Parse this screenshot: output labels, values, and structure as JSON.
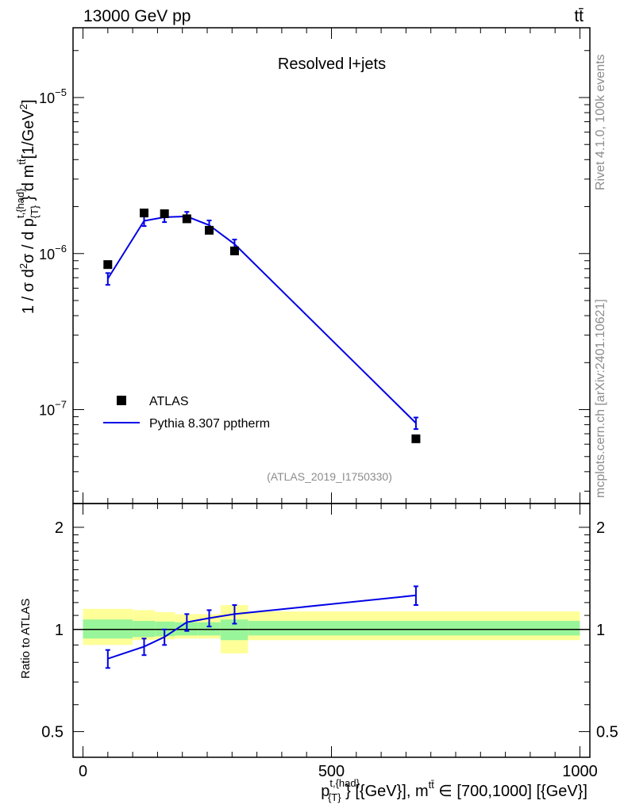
{
  "header": {
    "left_label": "13000 GeV pp",
    "right_label": "tt̄"
  },
  "side_labels": {
    "rivet": "Rivet 4.1.0,  100k events",
    "mcplots": "mcplots.cern.ch [arXiv:2401.10621]"
  },
  "chart_data": [
    {
      "panel": "main",
      "type": "scatter",
      "title": "Resolved l+jets",
      "analysis_label": "(ATLAS_2019_I1750330)",
      "ylabel": "1 / σ d²σ / d p^{t,{had}}_{T} d m^{tt̄} [1/GeV²]",
      "yscale": "log",
      "ylim": [
        2.5e-08,
        2.8e-05
      ],
      "xlim": [
        -20,
        1020
      ],
      "y_ticks": [
        {
          "value": 1e-07,
          "base": "10",
          "exp": "−7"
        },
        {
          "value": 1e-06,
          "base": "10",
          "exp": "−6"
        },
        {
          "value": 1e-05,
          "base": "10",
          "exp": "−5"
        }
      ],
      "legend": [
        {
          "label": "ATLAS",
          "marker": "square",
          "color": "#000000"
        },
        {
          "label": "Pythia 8.307 pptherm",
          "marker": "line",
          "color": "#0000e6"
        }
      ],
      "series": [
        {
          "name": "ATLAS",
          "marker": "square",
          "color": "#000000",
          "x": [
            50,
            123,
            164,
            209,
            254,
            305,
            670
          ],
          "y": [
            8.5e-07,
            1.82e-06,
            1.8e-06,
            1.67e-06,
            1.41e-06,
            1.04e-06,
            6.5e-08
          ]
        },
        {
          "name": "Pythia 8.307 pptherm",
          "marker": "line",
          "color": "#0000e6",
          "x": [
            50,
            123,
            164,
            209,
            254,
            305,
            670
          ],
          "y": [
            6.9e-07,
            1.62e-06,
            1.71e-06,
            1.73e-06,
            1.52e-06,
            1.15e-06,
            8.2e-08
          ],
          "yerr": [
            6e-08,
            1.2e-07,
            1.2e-07,
            1.2e-07,
            1.1e-07,
            8e-08,
            7e-09
          ]
        }
      ]
    },
    {
      "panel": "ratio",
      "type": "line",
      "ylabel": "Ratio to ATLAS",
      "xlabel": "p^{t,{had}}_{T} [{GeV}], m^{tt̄} ∈ [700,1000] [{GeV}]",
      "yscale": "log",
      "ylim": [
        0.42,
        2.35
      ],
      "xlim": [
        -20,
        1020
      ],
      "x_ticks": [
        0,
        500,
        1000
      ],
      "y_ticks": [
        0.5,
        1,
        2
      ],
      "bands": {
        "bins": [
          [
            0,
            100
          ],
          [
            100,
            145
          ],
          [
            145,
            185
          ],
          [
            185,
            232
          ],
          [
            232,
            277
          ],
          [
            277,
            332
          ],
          [
            332,
            1000
          ]
        ],
        "yellow": [
          [
            0.9,
            1.15
          ],
          [
            0.93,
            1.14
          ],
          [
            0.935,
            1.125
          ],
          [
            0.94,
            1.11
          ],
          [
            0.94,
            1.11
          ],
          [
            0.85,
            1.18
          ],
          [
            0.93,
            1.13
          ]
        ],
        "green": [
          [
            0.94,
            1.07
          ],
          [
            0.95,
            1.06
          ],
          [
            0.955,
            1.055
          ],
          [
            0.96,
            1.05
          ],
          [
            0.96,
            1.05
          ],
          [
            0.93,
            1.07
          ],
          [
            0.96,
            1.06
          ]
        ]
      },
      "series": [
        {
          "name": "Pythia 8.307 pptherm / ATLAS",
          "color": "#0000e6",
          "x": [
            50,
            123,
            164,
            209,
            254,
            305,
            670
          ],
          "y": [
            0.82,
            0.89,
            0.95,
            1.05,
            1.08,
            1.11,
            1.26
          ],
          "yerr": [
            0.05,
            0.05,
            0.05,
            0.06,
            0.06,
            0.07,
            0.08
          ]
        }
      ]
    }
  ]
}
